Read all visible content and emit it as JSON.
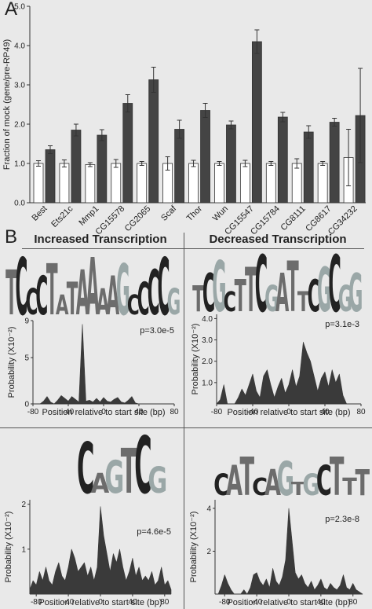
{
  "panels": {
    "a_letter": "A",
    "b_letter": "B",
    "col_left_title": "Increased Transcription",
    "col_right_title": "Decreased Transcription"
  },
  "chart_data": [
    {
      "type": "bar",
      "ylabel": "Fraction of mock (gene/pre-RP49)",
      "ylim": [
        0,
        5
      ],
      "yticks": [
        "0.0",
        "1.0",
        "2.0",
        "3.0",
        "4.0",
        "5.0"
      ],
      "categories": [
        "Best",
        "Ets21c",
        "Mmp1",
        "CG15578",
        "CG2065",
        "Scaf",
        "Thor",
        "Wun",
        "CG15547",
        "CG15784",
        "CG8111",
        "CG8617",
        "CG34232"
      ],
      "series": [
        {
          "values": [
            1.0,
            1.0,
            0.97,
            1.0,
            1.0,
            1.0,
            1.0,
            1.0,
            1.0,
            1.0,
            1.0,
            1.0,
            1.15
          ],
          "errors": [
            0.07,
            0.09,
            0.05,
            0.1,
            0.05,
            0.17,
            0.08,
            0.05,
            0.08,
            0.05,
            0.12,
            0.05,
            0.72
          ],
          "color": "#ffffff"
        },
        {
          "values": [
            1.35,
            1.85,
            1.72,
            2.53,
            3.13,
            1.87,
            2.35,
            1.98,
            4.1,
            2.18,
            1.8,
            2.05,
            2.22
          ],
          "errors": [
            0.1,
            0.15,
            0.14,
            0.22,
            0.32,
            0.23,
            0.18,
            0.1,
            0.3,
            0.12,
            0.16,
            0.1,
            1.2
          ],
          "color": "#444444"
        }
      ]
    },
    {
      "type": "area",
      "motif_letters": [
        "T",
        "C",
        "C",
        "C",
        "T",
        "A",
        "T",
        "A",
        "A",
        "A",
        "A",
        "G",
        "C",
        "C",
        "C",
        "C",
        "G"
      ],
      "pvalue": "p=3.0e-5",
      "ylabel": "Probability (X10⁻²)",
      "xlabel": "Position relative to start site (bp)",
      "yticks": [
        "0",
        "5",
        "9"
      ],
      "xticks": [
        "-80",
        "-40",
        "0",
        "40",
        "80"
      ],
      "ylim": [
        0,
        9
      ],
      "xlim": [
        -80,
        80
      ],
      "x": [
        -80,
        -76,
        -72,
        -68,
        -64,
        -60,
        -56,
        -52,
        -48,
        -44,
        -40,
        -36,
        -32,
        -28,
        -24,
        -20,
        -16,
        -12,
        -8,
        -4,
        0,
        4,
        8,
        12,
        16,
        20,
        24,
        28,
        32,
        36,
        40,
        44,
        48,
        52,
        56,
        60,
        64,
        68,
        72,
        76,
        80
      ],
      "y": [
        0,
        0,
        0,
        0.3,
        0.8,
        0.2,
        0,
        0.4,
        0.9,
        0.6,
        0.3,
        0.8,
        0.5,
        0.2,
        8.6,
        0.3,
        0.4,
        0.2,
        0.6,
        0.2,
        0.7,
        0.3,
        0.2,
        0.5,
        0.7,
        0.2,
        0.1,
        0.4,
        0.8,
        0.1,
        0,
        0,
        0,
        0,
        0,
        0,
        0,
        0,
        0,
        0,
        0
      ]
    },
    {
      "type": "area",
      "motif_letters": [
        "T",
        "C",
        "G",
        "C",
        "T",
        "T",
        "C",
        "G",
        "A",
        "T",
        "T",
        "C",
        "G",
        "C",
        "G",
        "G"
      ],
      "pvalue": "p=3.1e-3",
      "ylabel": "Probability (X10⁻²)",
      "xlabel": "Position relative to start site (bp)",
      "yticks": [
        "1.0",
        "2.0",
        "3.0",
        "4.0"
      ],
      "xticks": [
        "-80",
        "-40",
        "0",
        "40",
        "80"
      ],
      "ylim": [
        0,
        4.2
      ],
      "xlim": [
        -80,
        80
      ],
      "x": [
        -80,
        -76,
        -72,
        -68,
        -64,
        -60,
        -56,
        -52,
        -48,
        -44,
        -40,
        -36,
        -32,
        -28,
        -24,
        -20,
        -16,
        -12,
        -8,
        -4,
        0,
        4,
        8,
        12,
        16,
        20,
        24,
        28,
        32,
        36,
        40,
        44,
        48,
        52,
        56,
        60,
        64,
        68,
        72,
        76,
        80
      ],
      "y": [
        0,
        0.2,
        0.9,
        0,
        0,
        0,
        0.3,
        0.7,
        0.4,
        0.9,
        1.4,
        0.6,
        0.3,
        1.3,
        1.6,
        0.9,
        0.3,
        0.8,
        1.2,
        0.5,
        0.9,
        1.6,
        0.8,
        1.3,
        2.9,
        2.4,
        2.0,
        1.3,
        0.6,
        1.2,
        1.5,
        0.8,
        1.6,
        1.0,
        1.4,
        0.4,
        0,
        0,
        0,
        0,
        0
      ]
    },
    {
      "type": "area",
      "motif_letters": [
        "C",
        "A",
        "G",
        "T",
        "C",
        "G"
      ],
      "pvalue": "p=4.6e-5",
      "ylabel": "Probability (X10⁻²)",
      "xlabel": "Position relative to start site (bp)",
      "yticks": [
        "1",
        "2"
      ],
      "xticks": [
        "-80",
        "-40",
        "0",
        "40",
        "80"
      ],
      "ylim": [
        0,
        2.1
      ],
      "xlim": [
        -88,
        88
      ],
      "x": [
        -88,
        -84,
        -80,
        -76,
        -72,
        -68,
        -64,
        -60,
        -56,
        -52,
        -48,
        -44,
        -40,
        -36,
        -32,
        -28,
        -24,
        -20,
        -16,
        -12,
        -8,
        -4,
        0,
        4,
        8,
        12,
        16,
        20,
        24,
        28,
        32,
        36,
        40,
        44,
        48,
        52,
        56,
        60,
        64,
        68,
        72,
        76,
        80,
        84,
        88
      ],
      "y": [
        0.1,
        0.3,
        0.2,
        0.5,
        0.3,
        0.6,
        0.3,
        0.2,
        0.5,
        0.7,
        0.4,
        0.3,
        0.6,
        1.0,
        0.8,
        0.5,
        0.6,
        0.7,
        0.4,
        0.6,
        0.3,
        0.6,
        1.95,
        1.3,
        0.9,
        0.5,
        0.9,
        0.7,
        1.0,
        0.6,
        0.3,
        0.5,
        0.8,
        0.4,
        0.6,
        0.3,
        0.4,
        0.3,
        0.5,
        0.2,
        0.3,
        0.6,
        0.2,
        0.3,
        0.1
      ]
    },
    {
      "type": "area",
      "motif_letters": [
        "C",
        "A",
        "T",
        "C",
        "A",
        "G",
        "T",
        "G",
        "C",
        "T",
        "T",
        "T"
      ],
      "pvalue": "p=2.3e-8",
      "ylabel": "Probability (X10⁻²)",
      "xlabel": "Position relative to start site (bp)",
      "yticks": [
        "2",
        "4"
      ],
      "xticks": [
        "-80",
        "-40",
        "0",
        "40",
        "80"
      ],
      "ylim": [
        0,
        4.4
      ],
      "xlim": [
        -92,
        92
      ],
      "x": [
        -92,
        -88,
        -84,
        -80,
        -76,
        -72,
        -68,
        -64,
        -60,
        -56,
        -52,
        -48,
        -44,
        -40,
        -36,
        -32,
        -28,
        -24,
        -20,
        -16,
        -12,
        -8,
        -4,
        0,
        4,
        8,
        12,
        16,
        20,
        24,
        28,
        32,
        36,
        40,
        44,
        48,
        52,
        56,
        60,
        64,
        68,
        72,
        76,
        80,
        84,
        88,
        92
      ],
      "y": [
        0,
        0,
        0.4,
        0.9,
        0.5,
        0.2,
        0,
        0,
        0,
        0.2,
        0,
        0.3,
        0.9,
        1.0,
        0.6,
        0.4,
        0.7,
        0.3,
        1.2,
        0.6,
        0.4,
        0.8,
        1.6,
        4.0,
        2.5,
        1.0,
        0.7,
        0.9,
        0.5,
        0.3,
        0.6,
        0.2,
        0.4,
        0.7,
        0.3,
        0.2,
        0.5,
        0.3,
        0.2,
        0.4,
        0.9,
        0.3,
        0.2,
        0.5,
        0.2,
        0.1,
        0
      ]
    }
  ]
}
